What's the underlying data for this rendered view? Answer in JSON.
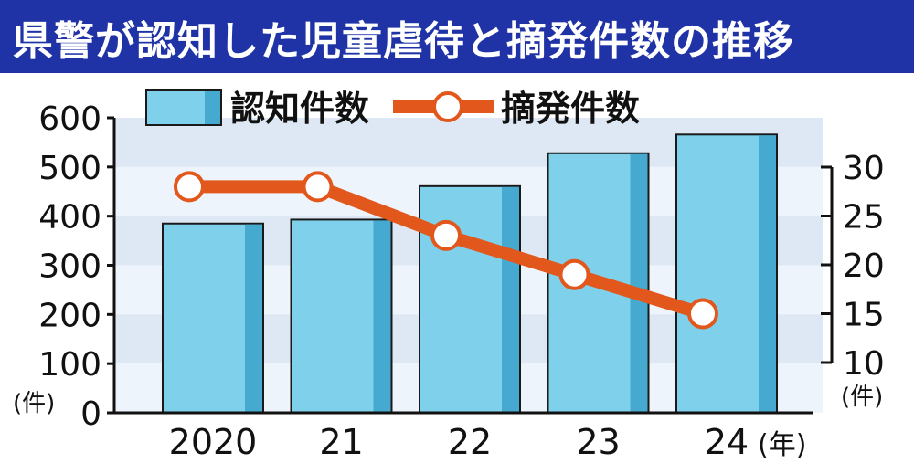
{
  "title": "県警が認知した児童虐待と摘発件数の推移",
  "colors": {
    "title_bg": "#1f33a6",
    "title_text": "#ffffff",
    "bar_fill": "#7fd0ea",
    "bar_shade": "#46a9cf",
    "line": "#e2571b",
    "marker_fill": "#ffffff",
    "stripe_dark": "#dde8f4",
    "stripe_light": "#eef4fb"
  },
  "chart_data": {
    "type": "bar+line",
    "categories": [
      "2020",
      "21",
      "22",
      "23",
      "24"
    ],
    "x_unit_label": "(年)",
    "series": [
      {
        "name": "認知件数",
        "type": "bar",
        "axis": "left",
        "values": [
          385,
          393,
          461,
          528,
          566
        ]
      },
      {
        "name": "摘発件数",
        "type": "line",
        "axis": "right",
        "values": [
          28,
          28,
          23,
          19,
          15
        ]
      }
    ],
    "left_axis": {
      "ticks": [
        0,
        100,
        200,
        300,
        400,
        500,
        600
      ],
      "tick_labels": [
        "0",
        "100",
        "200",
        "300",
        "400",
        "500",
        "600"
      ],
      "unit": "(件)",
      "ylim": [
        0,
        600
      ]
    },
    "right_axis": {
      "ticks": [
        10,
        15,
        20,
        25,
        30
      ],
      "tick_labels": [
        "10",
        "15",
        "20",
        "25",
        "30"
      ],
      "unit": "(件)",
      "ylim": [
        10,
        30
      ]
    },
    "legend_position": "top",
    "grid": "horizontal stripes"
  }
}
